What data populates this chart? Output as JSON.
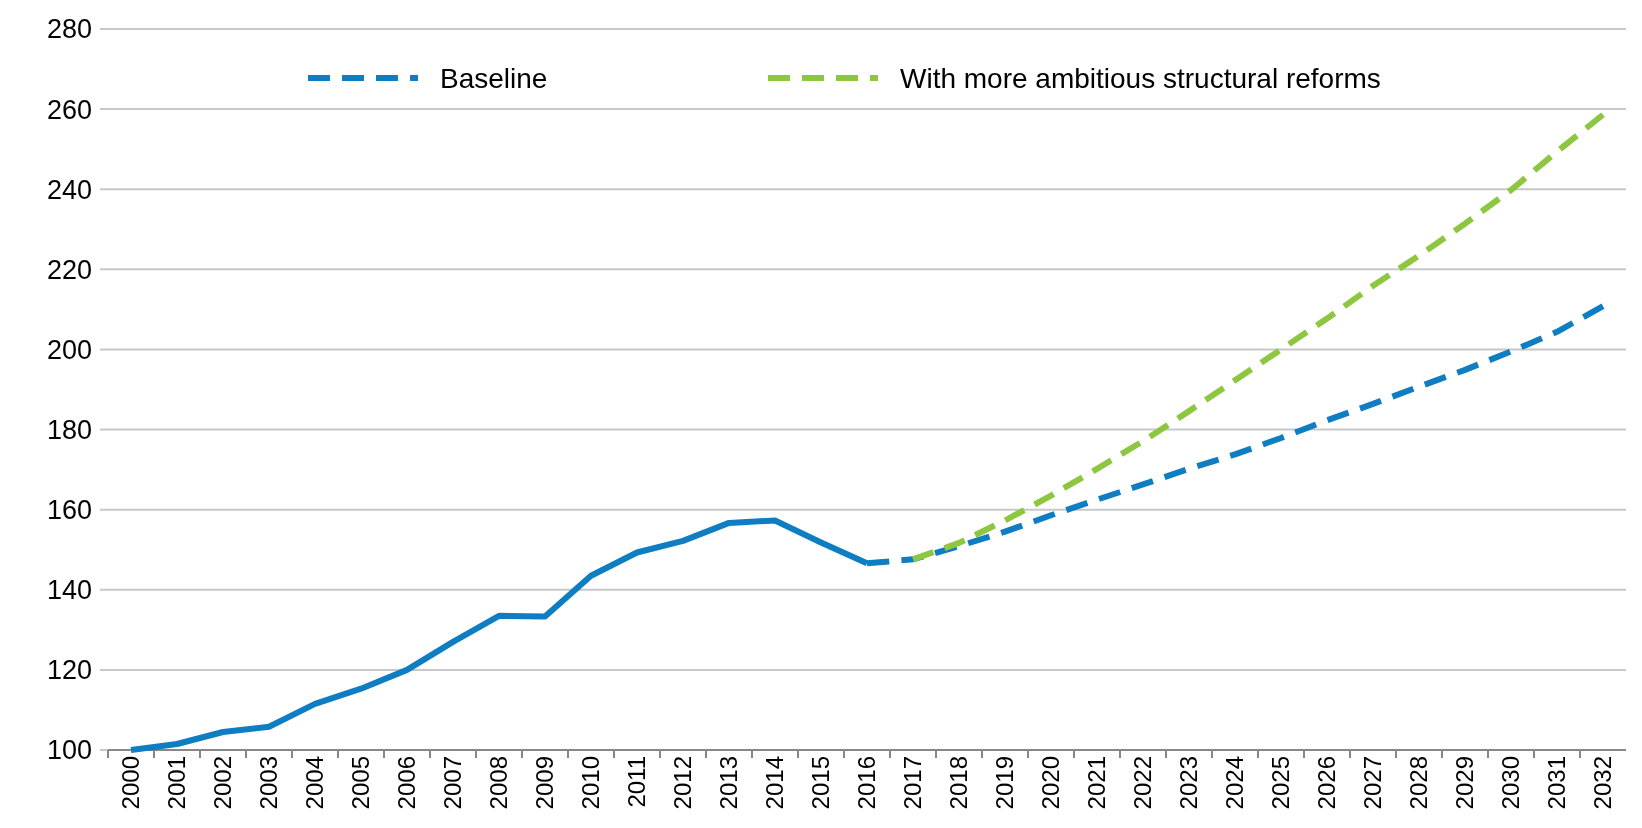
{
  "chart_data": {
    "type": "line",
    "categories": [
      "2000",
      "2001",
      "2002",
      "2003",
      "2004",
      "2005",
      "2006",
      "2007",
      "2008",
      "2009",
      "2010",
      "2011",
      "2012",
      "2013",
      "2014",
      "2015",
      "2016",
      "2017",
      "2018",
      "2019",
      "2020",
      "2021",
      "2022",
      "2023",
      "2024",
      "2025",
      "2026",
      "2027",
      "2028",
      "2029",
      "2030",
      "2031",
      "2032"
    ],
    "series": [
      {
        "color": "#0e7dc2",
        "line_style": "solid",
        "values": [
          100,
          101.5,
          104.5,
          105.8,
          111.5,
          115.3,
          120,
          127,
          133.5,
          133.3,
          143.5,
          149.3,
          152.2,
          156.7,
          157.3,
          151.8,
          146.6,
          null,
          null,
          null,
          null,
          null,
          null,
          null,
          null,
          null,
          null,
          null,
          null,
          null,
          null,
          null,
          null
        ]
      },
      {
        "name": "Baseline",
        "color": "#0e7dc2",
        "line_style": "dashed",
        "values": [
          null,
          null,
          null,
          null,
          null,
          null,
          null,
          null,
          null,
          null,
          null,
          null,
          null,
          null,
          null,
          null,
          146.6,
          147.6,
          150.9,
          154.5,
          158.6,
          162.5,
          166.3,
          170.2,
          173.8,
          177.9,
          182.3,
          186.4,
          190.7,
          194.9,
          199.5,
          204.4,
          210.8
        ]
      },
      {
        "name": "With more ambitious structural reforms",
        "color": "#8dc63f",
        "line_style": "dashed",
        "values": [
          null,
          null,
          null,
          null,
          null,
          null,
          null,
          null,
          null,
          null,
          null,
          null,
          null,
          null,
          null,
          null,
          null,
          147.6,
          151.7,
          157.3,
          163.5,
          170.2,
          177.1,
          184.6,
          192.3,
          200,
          207.7,
          215.9,
          223.4,
          231.4,
          239.8,
          249.4,
          258.6
        ]
      }
    ],
    "ylim": [
      100,
      280
    ],
    "yticks": [
      100,
      120,
      140,
      160,
      180,
      200,
      220,
      240,
      260,
      280
    ],
    "grid": "y",
    "legend": "top",
    "marker": "none"
  }
}
